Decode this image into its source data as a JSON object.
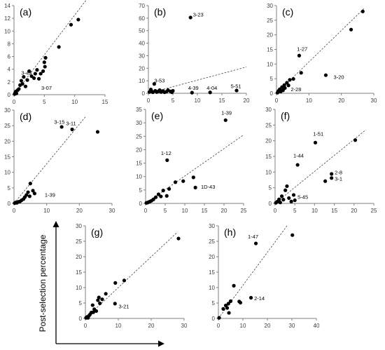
{
  "figure": {
    "ylabel": "Post-selection percentage"
  },
  "style": {
    "point_color": "#000000",
    "axis_color": "#7f7f7f",
    "fit_line_color": "#404040",
    "background": "#ffffff"
  },
  "chart_data": [
    {
      "type": "scatter",
      "panel_label": "(a)",
      "xlim": [
        0,
        15
      ],
      "ylim": [
        0,
        14
      ],
      "xticks": [
        0,
        5,
        10,
        15
      ],
      "yticks": [
        0,
        2,
        4,
        6,
        8,
        10,
        12,
        14
      ],
      "fit_line": {
        "style": "dashed",
        "x": [
          0,
          12
        ],
        "y": [
          0,
          15
        ]
      },
      "points": [
        {
          "x": 0.1,
          "y": 0.1
        },
        {
          "x": 0.2,
          "y": 0.3
        },
        {
          "x": 0.3,
          "y": 0.5
        },
        {
          "x": 0.4,
          "y": 0.2
        },
        {
          "x": 0.6,
          "y": 0.7
        },
        {
          "x": 0.8,
          "y": 0.9
        },
        {
          "x": 1.0,
          "y": 1.5
        },
        {
          "x": 1.2,
          "y": 2.2
        },
        {
          "x": 1.4,
          "y": 1.7
        },
        {
          "x": 1.6,
          "y": 2.8
        },
        {
          "x": 1.9,
          "y": 1.3
        },
        {
          "x": 2.2,
          "y": 2.3
        },
        {
          "x": 2.5,
          "y": 3.7
        },
        {
          "x": 2.9,
          "y": 2.9
        },
        {
          "x": 3.3,
          "y": 2.6
        },
        {
          "x": 3.5,
          "y": 3.3
        },
        {
          "x": 3.8,
          "y": 3.9
        },
        {
          "x": 4.1,
          "y": 2.5
        },
        {
          "x": 4.4,
          "y": 3.3
        },
        {
          "x": 4.8,
          "y": 3.7
        },
        {
          "x": 5.0,
          "y": 5.1
        },
        {
          "x": 5.1,
          "y": 4.4
        },
        {
          "x": 5.2,
          "y": 5.8
        },
        {
          "x": 7.4,
          "y": 7.5
        },
        {
          "x": 9.4,
          "y": 11.0
        },
        {
          "x": 10.6,
          "y": 11.8
        }
      ],
      "annotations": [
        {
          "text": "3-43",
          "x": 1.2,
          "y": 3.5
        },
        {
          "text": "3-07",
          "x": 4.5,
          "y": 1.1
        }
      ]
    },
    {
      "type": "scatter",
      "panel_label": "(b)",
      "xlim": [
        0,
        20
      ],
      "ylim": [
        0,
        70
      ],
      "xticks": [
        0,
        5,
        10,
        15,
        20
      ],
      "yticks": [
        0,
        10,
        20,
        30,
        40,
        50,
        60,
        70
      ],
      "fit_line": {
        "style": "dashed",
        "x": [
          0,
          20
        ],
        "y": [
          0,
          21
        ]
      },
      "points": [
        {
          "x": 0.2,
          "y": 1.0
        },
        {
          "x": 0.5,
          "y": 3.0
        },
        {
          "x": 0.7,
          "y": 1.5
        },
        {
          "x": 0.9,
          "y": 0.8
        },
        {
          "x": 1.2,
          "y": 7.5
        },
        {
          "x": 1.4,
          "y": 2.0
        },
        {
          "x": 1.7,
          "y": 1.0
        },
        {
          "x": 2.0,
          "y": 1.5
        },
        {
          "x": 2.3,
          "y": 2.5
        },
        {
          "x": 2.6,
          "y": 1.0
        },
        {
          "x": 3.0,
          "y": 1.8
        },
        {
          "x": 3.3,
          "y": 0.8
        },
        {
          "x": 3.7,
          "y": 1.3
        },
        {
          "x": 4.0,
          "y": 2.5
        },
        {
          "x": 4.5,
          "y": 1.5
        },
        {
          "x": 4.8,
          "y": 0.8
        },
        {
          "x": 5.0,
          "y": 2.0
        },
        {
          "x": 8.6,
          "y": 60.5
        },
        {
          "x": 8.9,
          "y": 0.5
        },
        {
          "x": 12.6,
          "y": 0.7
        },
        {
          "x": 18.0,
          "y": 2.2
        }
      ],
      "annotations": [
        {
          "text": "3-23",
          "x": 9.1,
          "y": 63
        },
        {
          "text": "3-53",
          "x": 1.2,
          "y": 10.5
        },
        {
          "text": "4-39",
          "x": 8.1,
          "y": 4.5
        },
        {
          "text": "4-04",
          "x": 11.9,
          "y": 4.5
        },
        {
          "text": "5-51",
          "x": 16.8,
          "y": 5.8
        }
      ]
    },
    {
      "type": "scatter",
      "panel_label": "(c)",
      "xlim": [
        0,
        30
      ],
      "ylim": [
        0,
        30
      ],
      "xticks": [
        0,
        10,
        20,
        30
      ],
      "yticks": [
        0,
        5,
        10,
        15,
        20,
        25,
        30
      ],
      "fit_line": {
        "style": "dashed",
        "x": [
          0,
          27
        ],
        "y": [
          0,
          29
        ]
      },
      "points": [
        {
          "x": 0.3,
          "y": 0.2
        },
        {
          "x": 0.6,
          "y": 0.8
        },
        {
          "x": 1.0,
          "y": 1.4
        },
        {
          "x": 1.3,
          "y": 0.6
        },
        {
          "x": 1.7,
          "y": 2.1
        },
        {
          "x": 2.0,
          "y": 1.0
        },
        {
          "x": 2.4,
          "y": 2.8
        },
        {
          "x": 2.6,
          "y": 1.8
        },
        {
          "x": 3.2,
          "y": 3.6
        },
        {
          "x": 3.7,
          "y": 2.7
        },
        {
          "x": 4.1,
          "y": 4.6
        },
        {
          "x": 5.2,
          "y": 4.9
        },
        {
          "x": 7.0,
          "y": 12.9
        },
        {
          "x": 7.6,
          "y": 7.0
        },
        {
          "x": 15.2,
          "y": 6.2
        },
        {
          "x": 23.0,
          "y": 21.8
        },
        {
          "x": 26.6,
          "y": 28.0
        }
      ],
      "annotations": [
        {
          "text": "1-27",
          "x": 6.3,
          "y": 15.3
        },
        {
          "text": "3-20",
          "x": 17.6,
          "y": 5.6
        },
        {
          "text": "2-28",
          "x": 4.4,
          "y": 1.5
        }
      ]
    },
    {
      "type": "scatter",
      "panel_label": "(d)",
      "xlim": [
        0,
        30
      ],
      "ylim": [
        0,
        30
      ],
      "xticks": [
        0,
        10,
        20,
        30
      ],
      "yticks": [
        0,
        5,
        10,
        15,
        20,
        25,
        30
      ],
      "fit_line": {
        "style": "dashed",
        "x": [
          0,
          22
        ],
        "y": [
          0,
          28
        ]
      },
      "points": [
        {
          "x": 0.2,
          "y": 0.1
        },
        {
          "x": 0.5,
          "y": 0.3
        },
        {
          "x": 0.9,
          "y": 0.2
        },
        {
          "x": 1.3,
          "y": 0.5
        },
        {
          "x": 1.8,
          "y": 0.6
        },
        {
          "x": 2.3,
          "y": 1.0
        },
        {
          "x": 2.9,
          "y": 1.4
        },
        {
          "x": 3.3,
          "y": 2.0
        },
        {
          "x": 3.8,
          "y": 2.7
        },
        {
          "x": 4.3,
          "y": 3.6
        },
        {
          "x": 4.8,
          "y": 2.3
        },
        {
          "x": 5.0,
          "y": 6.4
        },
        {
          "x": 5.8,
          "y": 4.1
        },
        {
          "x": 6.3,
          "y": 3.2
        },
        {
          "x": 14.6,
          "y": 24.6
        },
        {
          "x": 17.8,
          "y": 23.8
        },
        {
          "x": 25.6,
          "y": 23.0
        }
      ],
      "annotations": [
        {
          "text": "3-15",
          "x": 12.3,
          "y": 26.3
        },
        {
          "text": "3-11",
          "x": 15.9,
          "y": 25.8
        },
        {
          "text": "1-39",
          "x": 9.4,
          "y": 2.8
        }
      ]
    },
    {
      "type": "scatter",
      "panel_label": "(e)",
      "xlim": [
        0,
        25
      ],
      "ylim": [
        0,
        35
      ],
      "xticks": [
        0,
        5,
        10,
        15,
        20,
        25
      ],
      "yticks": [
        0,
        5,
        10,
        15,
        20,
        25,
        30,
        35
      ],
      "fit_line": {
        "style": "dashed",
        "x": [
          0,
          25
        ],
        "y": [
          0,
          25.5
        ]
      },
      "points": [
        {
          "x": 0.2,
          "y": 0.2
        },
        {
          "x": 0.5,
          "y": 0.3
        },
        {
          "x": 0.8,
          "y": 0.5
        },
        {
          "x": 1.1,
          "y": 0.7
        },
        {
          "x": 1.5,
          "y": 1.0
        },
        {
          "x": 2.0,
          "y": 1.5
        },
        {
          "x": 2.6,
          "y": 2.3
        },
        {
          "x": 3.3,
          "y": 3.4
        },
        {
          "x": 3.9,
          "y": 2.6
        },
        {
          "x": 4.5,
          "y": 4.8
        },
        {
          "x": 5.4,
          "y": 2.8
        },
        {
          "x": 5.5,
          "y": 16.1
        },
        {
          "x": 6.0,
          "y": 5.4
        },
        {
          "x": 7.6,
          "y": 7.9
        },
        {
          "x": 9.6,
          "y": 8.3
        },
        {
          "x": 12.2,
          "y": 9.7
        },
        {
          "x": 12.7,
          "y": 5.9
        },
        {
          "x": 20.4,
          "y": 31.0
        }
      ],
      "annotations": [
        {
          "text": "1-39",
          "x": 19.3,
          "y": 33.8
        },
        {
          "text": "1-12",
          "x": 3.9,
          "y": 18.8
        },
        {
          "text": "1D-43",
          "x": 14.1,
          "y": 6.3
        }
      ]
    },
    {
      "type": "scatter",
      "panel_label": "(f)",
      "xlim": [
        0,
        25
      ],
      "ylim": [
        0,
        30
      ],
      "xticks": [
        0,
        5,
        10,
        15,
        20,
        25
      ],
      "yticks": [
        0,
        5,
        10,
        15,
        20,
        25,
        30
      ],
      "fit_line": {
        "style": "dashed",
        "x": [
          0,
          23
        ],
        "y": [
          0,
          23.5
        ]
      },
      "points": [
        {
          "x": 0.2,
          "y": 0.2
        },
        {
          "x": 0.6,
          "y": 0.6
        },
        {
          "x": 1.0,
          "y": 1.3
        },
        {
          "x": 1.3,
          "y": 0.3
        },
        {
          "x": 1.7,
          "y": 2.3
        },
        {
          "x": 2.1,
          "y": 1.2
        },
        {
          "x": 2.6,
          "y": 4.2
        },
        {
          "x": 3.0,
          "y": 5.5
        },
        {
          "x": 3.5,
          "y": 1.7
        },
        {
          "x": 4.1,
          "y": 0.6
        },
        {
          "x": 4.7,
          "y": 2.7
        },
        {
          "x": 5.0,
          "y": 1.0
        },
        {
          "x": 5.7,
          "y": 12.3
        },
        {
          "x": 10.2,
          "y": 19.4
        },
        {
          "x": 12.7,
          "y": 7.1
        },
        {
          "x": 14.3,
          "y": 8.1
        },
        {
          "x": 14.3,
          "y": 9.4
        },
        {
          "x": 20.3,
          "y": 20.2
        }
      ],
      "annotations": [
        {
          "text": "1-51",
          "x": 9.6,
          "y": 22.3
        },
        {
          "text": "1-44",
          "x": 4.6,
          "y": 15.3
        },
        {
          "text": "2-8",
          "x": 15.1,
          "y": 10.0
        },
        {
          "text": "3-1",
          "x": 15.1,
          "y": 7.9
        },
        {
          "text": "5-45",
          "x": 5.7,
          "y": 2.1
        }
      ]
    },
    {
      "type": "scatter",
      "panel_label": "(g)",
      "xlim": [
        0,
        30
      ],
      "ylim": [
        0,
        30
      ],
      "xticks": [
        0,
        10,
        20,
        30
      ],
      "yticks": [
        0,
        5,
        10,
        15,
        20,
        25,
        30
      ],
      "fit_line": {
        "style": "dashed",
        "x": [
          0,
          28
        ],
        "y": [
          0,
          28
        ]
      },
      "points": [
        {
          "x": 0.2,
          "y": 0.2
        },
        {
          "x": 0.5,
          "y": 0.5
        },
        {
          "x": 0.8,
          "y": 0.2
        },
        {
          "x": 1.1,
          "y": 0.9
        },
        {
          "x": 1.4,
          "y": 1.3
        },
        {
          "x": 1.8,
          "y": 1.9
        },
        {
          "x": 2.2,
          "y": 4.3
        },
        {
          "x": 2.4,
          "y": 2.0
        },
        {
          "x": 2.7,
          "y": 3.0
        },
        {
          "x": 3.3,
          "y": 2.4
        },
        {
          "x": 3.8,
          "y": 5.9
        },
        {
          "x": 4.1,
          "y": 6.8
        },
        {
          "x": 4.4,
          "y": 4.9
        },
        {
          "x": 5.1,
          "y": 6.2
        },
        {
          "x": 6.2,
          "y": 8.0
        },
        {
          "x": 9.0,
          "y": 4.8
        },
        {
          "x": 9.1,
          "y": 11.5
        },
        {
          "x": 11.8,
          "y": 12.3
        },
        {
          "x": 28.3,
          "y": 25.9
        }
      ],
      "annotations": [
        {
          "text": "3-21",
          "x": 10.1,
          "y": 4.0
        }
      ]
    },
    {
      "type": "scatter",
      "panel_label": "(h)",
      "xlim": [
        0,
        40
      ],
      "ylim": [
        0,
        30
      ],
      "xticks": [
        0,
        10,
        20,
        30,
        40
      ],
      "yticks": [
        0,
        5,
        10,
        15,
        20,
        25,
        30
      ],
      "fit_line": {
        "style": "dashed",
        "x": [
          0,
          28
        ],
        "y": [
          0,
          30
        ]
      },
      "points": [
        {
          "x": 0.3,
          "y": 0.2
        },
        {
          "x": 2.0,
          "y": 3.1
        },
        {
          "x": 3.0,
          "y": 4.2
        },
        {
          "x": 3.6,
          "y": 3.4
        },
        {
          "x": 4.1,
          "y": 4.8
        },
        {
          "x": 4.3,
          "y": 1.8
        },
        {
          "x": 5.0,
          "y": 5.6
        },
        {
          "x": 6.3,
          "y": 10.6
        },
        {
          "x": 8.5,
          "y": 5.5
        },
        {
          "x": 9.0,
          "y": 5.1
        },
        {
          "x": 13.3,
          "y": 6.7
        },
        {
          "x": 15.3,
          "y": 24.3
        },
        {
          "x": 30.2,
          "y": 27.0
        }
      ],
      "annotations": [
        {
          "text": "1-47",
          "x": 12.0,
          "y": 26.6
        },
        {
          "text": "2-14",
          "x": 14.6,
          "y": 6.6
        }
      ]
    }
  ]
}
